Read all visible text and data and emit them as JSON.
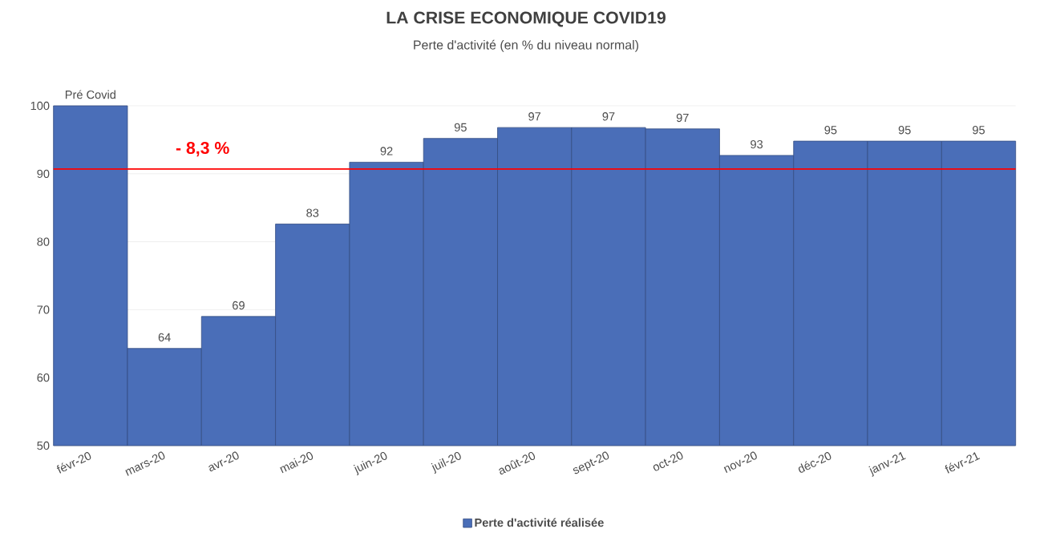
{
  "chart_data": {
    "type": "bar",
    "title": "LA CRISE ECONOMIQUE COVID19",
    "subtitle": "Perte d'activité (en % du niveau normal)",
    "categories": [
      "févr-20",
      "mars-20",
      "avr-20",
      "mai-20",
      "juin-20",
      "juil-20",
      "août-20",
      "sept-20",
      "oct-20",
      "nov-20",
      "déc-20",
      "janv-21",
      "févr-21"
    ],
    "series": [
      {
        "name": "Perte d'activité réalisée",
        "color": "#4a6eb8",
        "values": [
          100,
          64.3,
          69.0,
          82.6,
          91.7,
          95.2,
          96.8,
          96.8,
          96.6,
          92.7,
          94.8,
          94.8,
          94.8
        ],
        "value_labels": [
          "Pré Covid",
          "64",
          "69",
          "83",
          "92",
          "95",
          "97",
          "97",
          "97",
          "93",
          "95",
          "95",
          "95"
        ]
      }
    ],
    "ylim": [
      50,
      100
    ],
    "yticks": [
      50,
      60,
      70,
      80,
      90,
      100
    ],
    "grid": "y",
    "legend": "bottom",
    "ref_lines": [
      {
        "axis": "y",
        "value": 90.7,
        "color": "#ff0000"
      }
    ],
    "annotations": [
      "- 8,3 %"
    ]
  }
}
